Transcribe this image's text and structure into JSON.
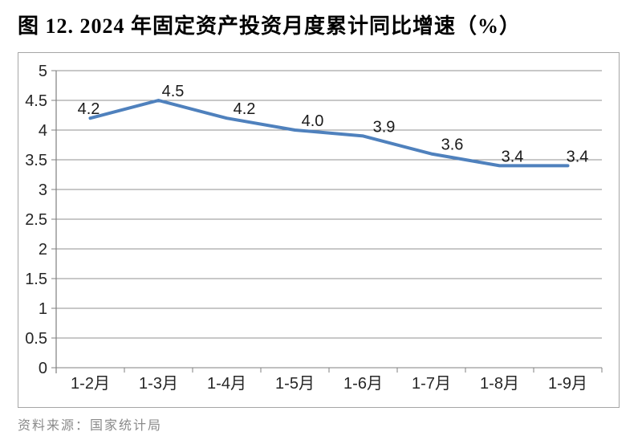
{
  "page": {
    "title": "图 12. 2024 年固定资产投资月度累计同比增速（%）",
    "source": "资料来源：国家统计局"
  },
  "chart_data": {
    "type": "line",
    "title": "图 12. 2024 年固定资产投资月度累计同比增速（%）",
    "categories": [
      "1-2月",
      "1-3月",
      "1-4月",
      "1-5月",
      "1-6月",
      "1-7月",
      "1-8月",
      "1-9月"
    ],
    "values": [
      4.2,
      4.5,
      4.2,
      4.0,
      3.9,
      3.6,
      3.4,
      3.4
    ],
    "data_labels": [
      "4.2",
      "4.5",
      "4.2",
      "4.0",
      "3.9",
      "3.6",
      "3.4",
      "3.4"
    ],
    "xlabel": "",
    "ylabel": "",
    "ylim": [
      0,
      5
    ],
    "ytick_step": 0.5,
    "ytick_labels": [
      "0",
      "0.5",
      "1",
      "1.5",
      "2",
      "2.5",
      "3",
      "3.5",
      "4",
      "4.5",
      "5"
    ],
    "grid": true,
    "legend": false,
    "source": "资料来源：国家统计局",
    "colors": {
      "line": "#4F81BD",
      "grid": "#909090",
      "axis": "#808080",
      "border": "#A6A6A6",
      "tick_label": "#262626",
      "data_label": "#1A1A1A",
      "title": "#000000",
      "source_text": "#8A8A8A"
    },
    "layout": {
      "label_dx": [
        -2,
        18,
        22,
        22,
        26,
        26,
        16,
        12
      ],
      "label_dy": -5
    }
  }
}
